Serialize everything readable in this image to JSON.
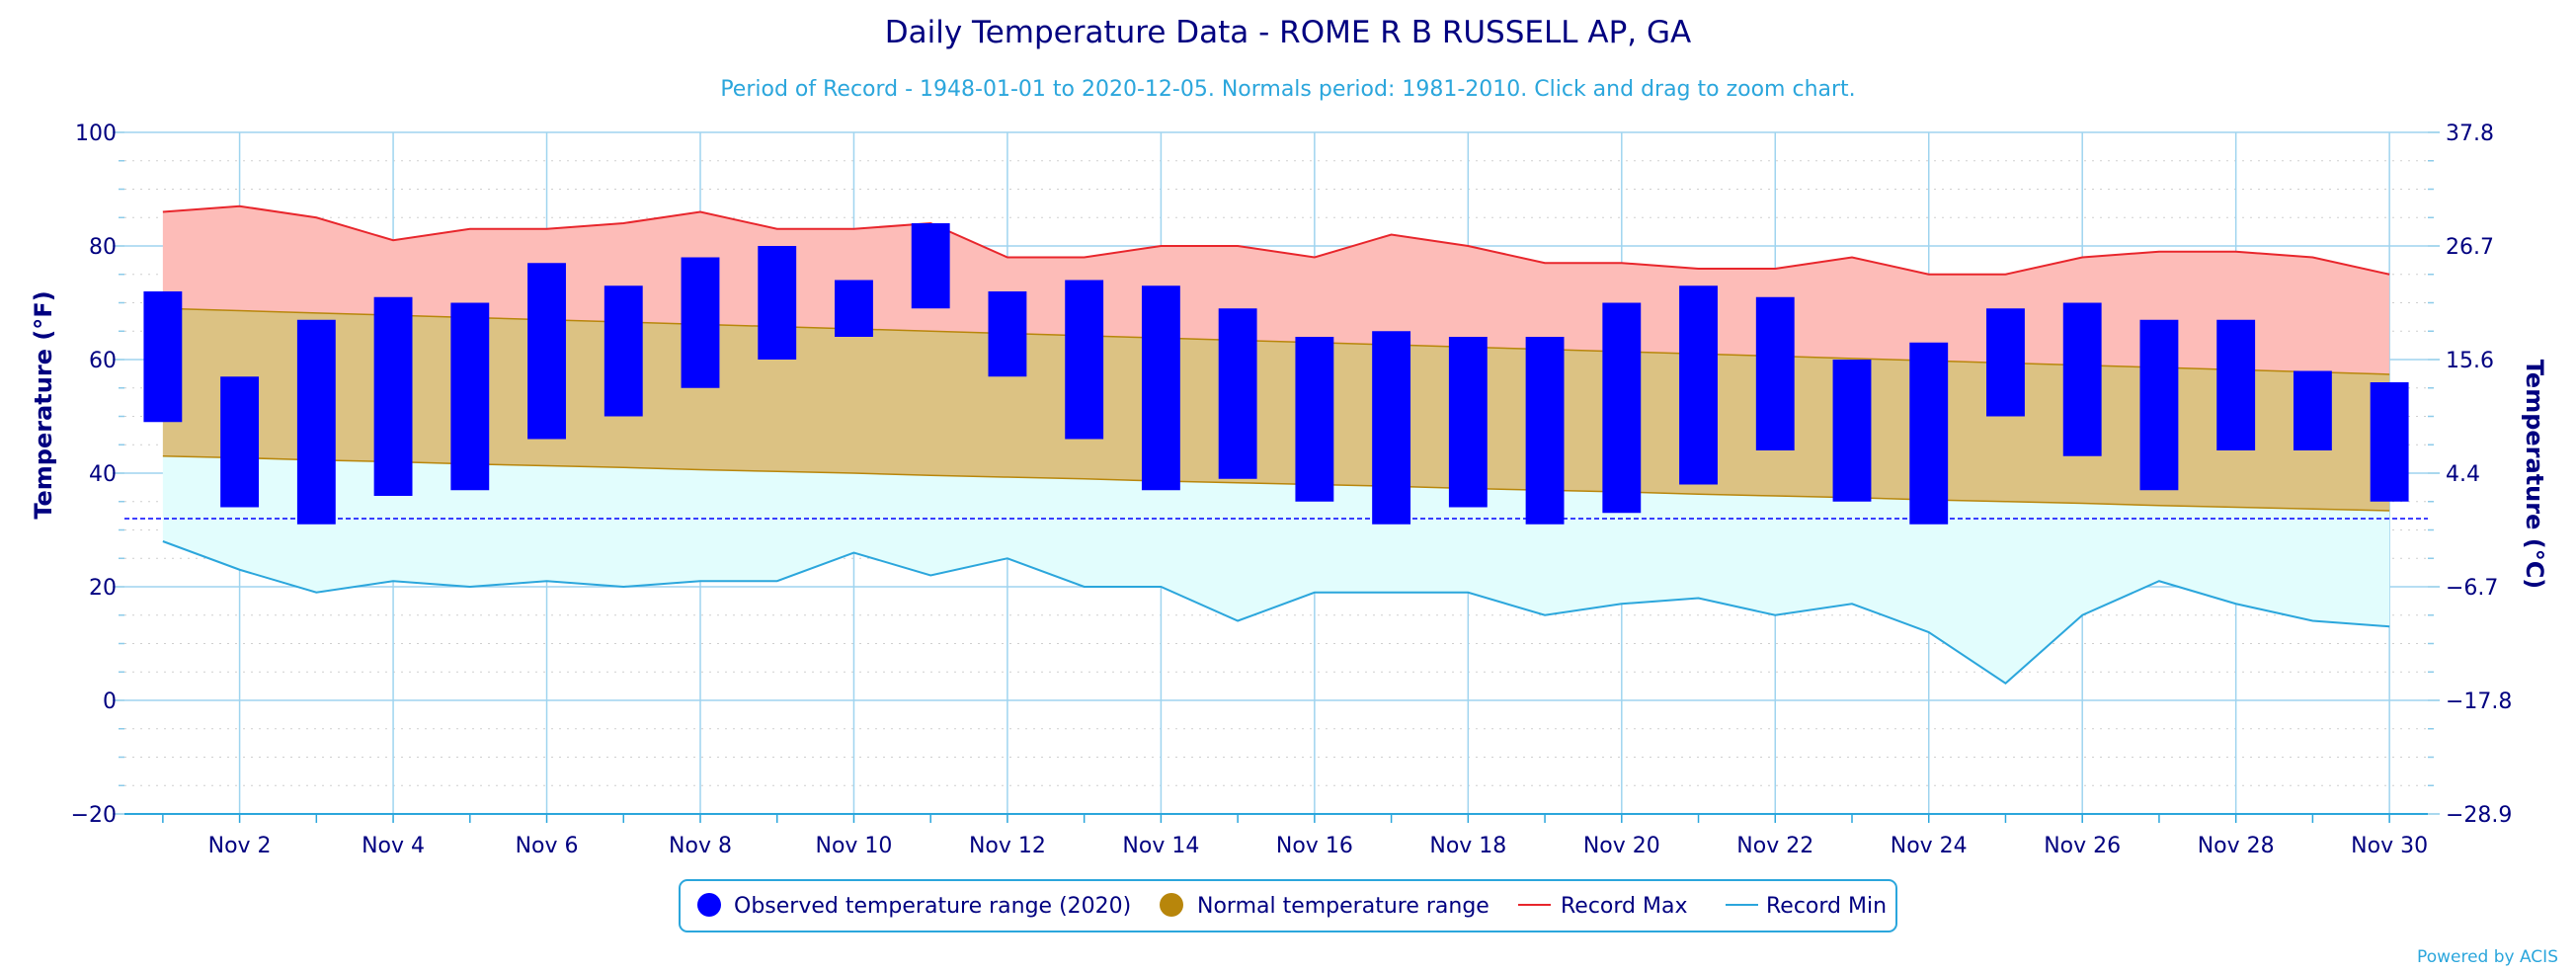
{
  "chart_data": {
    "type": "bar",
    "title": "Daily Temperature Data - ROME R B RUSSELL AP, GA",
    "subtitle": "Period of Record - 1948-01-01 to 2020-12-05. Normals period: 1981-2010. Click and drag to zoom chart.",
    "ylabel": "Temperature (°F)",
    "ylabel_right": "Temperature (°C)",
    "ylim": [
      -20,
      100
    ],
    "yticks": [
      -20,
      0,
      20,
      40,
      60,
      80,
      100
    ],
    "yticks_right": [
      "-28.9",
      "-17.8",
      "-6.7",
      "4.4",
      "15.6",
      "26.7",
      "37.8"
    ],
    "freezing_line": 32,
    "x": [
      1,
      2,
      3,
      4,
      5,
      6,
      7,
      8,
      9,
      10,
      11,
      12,
      13,
      14,
      15,
      16,
      17,
      18,
      19,
      20,
      21,
      22,
      23,
      24,
      25,
      26,
      27,
      28,
      29,
      30
    ],
    "xtick_labels": [
      "Nov 2",
      "Nov 4",
      "Nov 6",
      "Nov 8",
      "Nov 10",
      "Nov 12",
      "Nov 14",
      "Nov 16",
      "Nov 18",
      "Nov 20",
      "Nov 22",
      "Nov 24",
      "Nov 26",
      "Nov 28",
      "Nov 30"
    ],
    "series": [
      {
        "name": "Observed temperature range (2020)",
        "color": "#0000ff",
        "high": [
          72,
          57,
          67,
          71,
          70,
          77,
          73,
          78,
          80,
          74,
          84,
          72,
          74,
          73,
          69,
          64,
          65,
          64,
          64,
          70,
          73,
          71,
          60,
          63,
          69,
          70,
          67,
          67,
          58,
          56
        ],
        "low": [
          49,
          34,
          31,
          36,
          37,
          46,
          50,
          55,
          60,
          64,
          69,
          57,
          46,
          37,
          39,
          35,
          31,
          34,
          31,
          33,
          38,
          44,
          35,
          31,
          50,
          43,
          37,
          44,
          44,
          35
        ]
      },
      {
        "name": "Normal temperature range",
        "color": "#b8860b",
        "high": [
          69,
          68.6,
          68.2,
          67.8,
          67.4,
          67,
          66.6,
          66.2,
          65.8,
          65.4,
          65,
          64.6,
          64.2,
          63.8,
          63.4,
          63,
          62.6,
          62.2,
          61.8,
          61.4,
          61,
          60.6,
          60.2,
          59.8,
          59.4,
          59,
          58.6,
          58.2,
          57.8,
          57.4
        ],
        "low": [
          43,
          42.7,
          42.3,
          42,
          41.6,
          41.3,
          41,
          40.6,
          40.3,
          40,
          39.6,
          39.3,
          39,
          38.6,
          38.3,
          38,
          37.7,
          37.3,
          37,
          36.7,
          36.3,
          36,
          35.7,
          35.3,
          35,
          34.7,
          34.3,
          34,
          33.7,
          33.4
        ]
      },
      {
        "name": "Record Max",
        "color": "#e8262c",
        "values": [
          86,
          87,
          85,
          81,
          83,
          83,
          84,
          86,
          83,
          83,
          84,
          78,
          78,
          80,
          80,
          78,
          82,
          80,
          77,
          77,
          76,
          76,
          78,
          75,
          75,
          78,
          79,
          79,
          78,
          75
        ]
      },
      {
        "name": "Record Min",
        "color": "#2ba6dc",
        "values": [
          28,
          23,
          19,
          21,
          20,
          21,
          20,
          21,
          21,
          26,
          22,
          25,
          20,
          20,
          14,
          19,
          19,
          19,
          15,
          17,
          18,
          15,
          17,
          12,
          3,
          15,
          21,
          17,
          14,
          13
        ]
      }
    ],
    "legend_position": "bottom-center",
    "grid": true
  },
  "credits": "Powered by ACIS"
}
